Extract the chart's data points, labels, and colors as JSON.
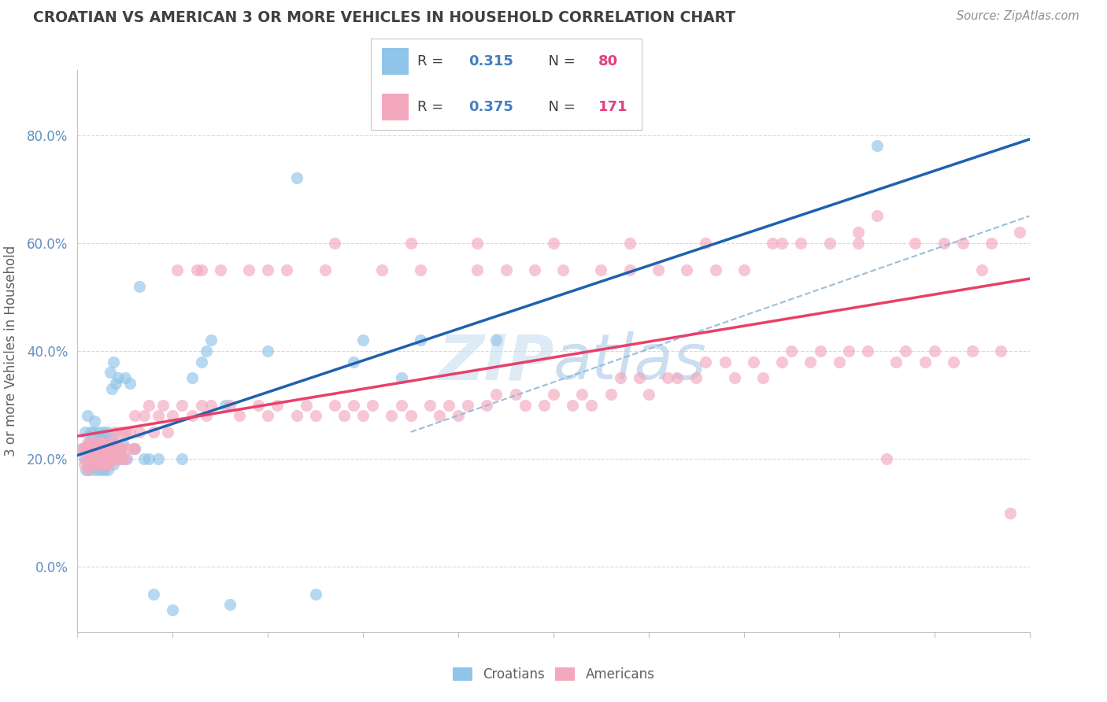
{
  "title": "CROATIAN VS AMERICAN 3 OR MORE VEHICLES IN HOUSEHOLD CORRELATION CHART",
  "source": "Source: ZipAtlas.com",
  "ylabel": "3 or more Vehicles in Household",
  "croatian_R": 0.315,
  "croatian_N": 80,
  "american_R": 0.375,
  "american_N": 171,
  "croatian_color": "#90c4e8",
  "american_color": "#f4a8be",
  "croatian_line_color": "#2060b0",
  "american_line_color": "#e8406a",
  "dash_line_color": "#90b8d8",
  "ytick_color": "#6090c0",
  "xlabel_color": "#6090c0",
  "grid_color": "#c8d8e8",
  "background_color": "#ffffff",
  "title_color": "#404040",
  "source_color": "#909090",
  "legend_R_color": "#4080c0",
  "legend_N_color": "#e04080",
  "legend_text_color": "#404040",
  "watermark_color": "#c8dff0",
  "xmin": 0.0,
  "xmax": 1.0,
  "ymin": -0.12,
  "ymax": 0.92,
  "yticks": [
    0.0,
    0.2,
    0.4,
    0.6,
    0.8
  ],
  "ytick_labels": [
    "0.0%",
    "20.0%",
    "40.0%",
    "60.0%",
    "80.0%"
  ],
  "croatian_points": [
    [
      0.005,
      0.22
    ],
    [
      0.007,
      0.2
    ],
    [
      0.008,
      0.25
    ],
    [
      0.009,
      0.18
    ],
    [
      0.01,
      0.28
    ],
    [
      0.01,
      0.22
    ],
    [
      0.012,
      0.2
    ],
    [
      0.012,
      0.23
    ],
    [
      0.013,
      0.18
    ],
    [
      0.014,
      0.25
    ],
    [
      0.015,
      0.2
    ],
    [
      0.015,
      0.22
    ],
    [
      0.016,
      0.19
    ],
    [
      0.017,
      0.25
    ],
    [
      0.018,
      0.22
    ],
    [
      0.018,
      0.27
    ],
    [
      0.019,
      0.18
    ],
    [
      0.02,
      0.2
    ],
    [
      0.02,
      0.23
    ],
    [
      0.021,
      0.22
    ],
    [
      0.021,
      0.19
    ],
    [
      0.022,
      0.25
    ],
    [
      0.022,
      0.2
    ],
    [
      0.023,
      0.22
    ],
    [
      0.024,
      0.18
    ],
    [
      0.024,
      0.21
    ],
    [
      0.025,
      0.24
    ],
    [
      0.025,
      0.2
    ],
    [
      0.026,
      0.19
    ],
    [
      0.027,
      0.22
    ],
    [
      0.027,
      0.25
    ],
    [
      0.028,
      0.2
    ],
    [
      0.028,
      0.18
    ],
    [
      0.029,
      0.23
    ],
    [
      0.03,
      0.22
    ],
    [
      0.03,
      0.19
    ],
    [
      0.031,
      0.25
    ],
    [
      0.031,
      0.2
    ],
    [
      0.032,
      0.18
    ],
    [
      0.033,
      0.22
    ],
    [
      0.034,
      0.36
    ],
    [
      0.034,
      0.2
    ],
    [
      0.035,
      0.22
    ],
    [
      0.036,
      0.33
    ],
    [
      0.036,
      0.24
    ],
    [
      0.038,
      0.19
    ],
    [
      0.038,
      0.38
    ],
    [
      0.04,
      0.22
    ],
    [
      0.04,
      0.34
    ],
    [
      0.042,
      0.2
    ],
    [
      0.043,
      0.35
    ],
    [
      0.045,
      0.22
    ],
    [
      0.046,
      0.2
    ],
    [
      0.048,
      0.23
    ],
    [
      0.05,
      0.35
    ],
    [
      0.052,
      0.2
    ],
    [
      0.055,
      0.34
    ],
    [
      0.06,
      0.22
    ],
    [
      0.065,
      0.52
    ],
    [
      0.07,
      0.2
    ],
    [
      0.075,
      0.2
    ],
    [
      0.08,
      -0.05
    ],
    [
      0.085,
      0.2
    ],
    [
      0.1,
      -0.08
    ],
    [
      0.11,
      0.2
    ],
    [
      0.12,
      0.35
    ],
    [
      0.13,
      0.38
    ],
    [
      0.135,
      0.4
    ],
    [
      0.14,
      0.42
    ],
    [
      0.155,
      0.3
    ],
    [
      0.16,
      -0.07
    ],
    [
      0.2,
      0.4
    ],
    [
      0.23,
      0.72
    ],
    [
      0.25,
      -0.05
    ],
    [
      0.29,
      0.38
    ],
    [
      0.3,
      0.42
    ],
    [
      0.34,
      0.35
    ],
    [
      0.36,
      0.42
    ],
    [
      0.44,
      0.42
    ],
    [
      0.84,
      0.78
    ]
  ],
  "american_points": [
    [
      0.005,
      0.22
    ],
    [
      0.007,
      0.19
    ],
    [
      0.008,
      0.22
    ],
    [
      0.009,
      0.2
    ],
    [
      0.01,
      0.23
    ],
    [
      0.01,
      0.18
    ],
    [
      0.011,
      0.22
    ],
    [
      0.012,
      0.2
    ],
    [
      0.013,
      0.23
    ],
    [
      0.014,
      0.19
    ],
    [
      0.015,
      0.21
    ],
    [
      0.015,
      0.23
    ],
    [
      0.016,
      0.2
    ],
    [
      0.017,
      0.22
    ],
    [
      0.018,
      0.19
    ],
    [
      0.018,
      0.21
    ],
    [
      0.019,
      0.23
    ],
    [
      0.02,
      0.2
    ],
    [
      0.02,
      0.22
    ],
    [
      0.021,
      0.19
    ],
    [
      0.021,
      0.21
    ],
    [
      0.022,
      0.23
    ],
    [
      0.022,
      0.2
    ],
    [
      0.023,
      0.22
    ],
    [
      0.024,
      0.19
    ],
    [
      0.024,
      0.21
    ],
    [
      0.025,
      0.23
    ],
    [
      0.025,
      0.2
    ],
    [
      0.026,
      0.22
    ],
    [
      0.027,
      0.19
    ],
    [
      0.027,
      0.21
    ],
    [
      0.028,
      0.23
    ],
    [
      0.028,
      0.2
    ],
    [
      0.029,
      0.22
    ],
    [
      0.03,
      0.19
    ],
    [
      0.03,
      0.21
    ],
    [
      0.031,
      0.23
    ],
    [
      0.031,
      0.2
    ],
    [
      0.032,
      0.22
    ],
    [
      0.033,
      0.19
    ],
    [
      0.034,
      0.21
    ],
    [
      0.034,
      0.23
    ],
    [
      0.035,
      0.2
    ],
    [
      0.036,
      0.22
    ],
    [
      0.037,
      0.23
    ],
    [
      0.038,
      0.2
    ],
    [
      0.038,
      0.22
    ],
    [
      0.039,
      0.25
    ],
    [
      0.04,
      0.22
    ],
    [
      0.04,
      0.2
    ],
    [
      0.042,
      0.23
    ],
    [
      0.043,
      0.2
    ],
    [
      0.044,
      0.22
    ],
    [
      0.045,
      0.25
    ],
    [
      0.046,
      0.22
    ],
    [
      0.048,
      0.2
    ],
    [
      0.05,
      0.25
    ],
    [
      0.052,
      0.22
    ],
    [
      0.055,
      0.25
    ],
    [
      0.058,
      0.22
    ],
    [
      0.06,
      0.28
    ],
    [
      0.065,
      0.25
    ],
    [
      0.07,
      0.28
    ],
    [
      0.075,
      0.3
    ],
    [
      0.08,
      0.25
    ],
    [
      0.085,
      0.28
    ],
    [
      0.09,
      0.3
    ],
    [
      0.095,
      0.25
    ],
    [
      0.1,
      0.28
    ],
    [
      0.105,
      0.55
    ],
    [
      0.11,
      0.3
    ],
    [
      0.12,
      0.28
    ],
    [
      0.125,
      0.55
    ],
    [
      0.13,
      0.3
    ],
    [
      0.135,
      0.28
    ],
    [
      0.14,
      0.3
    ],
    [
      0.15,
      0.55
    ],
    [
      0.16,
      0.3
    ],
    [
      0.17,
      0.28
    ],
    [
      0.18,
      0.55
    ],
    [
      0.19,
      0.3
    ],
    [
      0.2,
      0.28
    ],
    [
      0.21,
      0.3
    ],
    [
      0.22,
      0.55
    ],
    [
      0.23,
      0.28
    ],
    [
      0.24,
      0.3
    ],
    [
      0.25,
      0.28
    ],
    [
      0.26,
      0.55
    ],
    [
      0.27,
      0.3
    ],
    [
      0.28,
      0.28
    ],
    [
      0.29,
      0.3
    ],
    [
      0.3,
      0.28
    ],
    [
      0.31,
      0.3
    ],
    [
      0.32,
      0.55
    ],
    [
      0.33,
      0.28
    ],
    [
      0.34,
      0.3
    ],
    [
      0.35,
      0.28
    ],
    [
      0.36,
      0.55
    ],
    [
      0.37,
      0.3
    ],
    [
      0.38,
      0.28
    ],
    [
      0.39,
      0.3
    ],
    [
      0.4,
      0.28
    ],
    [
      0.41,
      0.3
    ],
    [
      0.42,
      0.55
    ],
    [
      0.43,
      0.3
    ],
    [
      0.44,
      0.32
    ],
    [
      0.45,
      0.55
    ],
    [
      0.46,
      0.32
    ],
    [
      0.47,
      0.3
    ],
    [
      0.48,
      0.55
    ],
    [
      0.49,
      0.3
    ],
    [
      0.5,
      0.32
    ],
    [
      0.51,
      0.55
    ],
    [
      0.52,
      0.3
    ],
    [
      0.53,
      0.32
    ],
    [
      0.54,
      0.3
    ],
    [
      0.55,
      0.55
    ],
    [
      0.56,
      0.32
    ],
    [
      0.57,
      0.35
    ],
    [
      0.58,
      0.55
    ],
    [
      0.59,
      0.35
    ],
    [
      0.6,
      0.32
    ],
    [
      0.61,
      0.55
    ],
    [
      0.62,
      0.35
    ],
    [
      0.63,
      0.35
    ],
    [
      0.64,
      0.55
    ],
    [
      0.65,
      0.35
    ],
    [
      0.66,
      0.38
    ],
    [
      0.67,
      0.55
    ],
    [
      0.68,
      0.38
    ],
    [
      0.69,
      0.35
    ],
    [
      0.7,
      0.55
    ],
    [
      0.71,
      0.38
    ],
    [
      0.72,
      0.35
    ],
    [
      0.73,
      0.6
    ],
    [
      0.74,
      0.38
    ],
    [
      0.75,
      0.4
    ],
    [
      0.76,
      0.6
    ],
    [
      0.77,
      0.38
    ],
    [
      0.78,
      0.4
    ],
    [
      0.79,
      0.6
    ],
    [
      0.8,
      0.38
    ],
    [
      0.81,
      0.4
    ],
    [
      0.82,
      0.6
    ],
    [
      0.83,
      0.4
    ],
    [
      0.84,
      0.65
    ],
    [
      0.85,
      0.2
    ],
    [
      0.86,
      0.38
    ],
    [
      0.87,
      0.4
    ],
    [
      0.88,
      0.6
    ],
    [
      0.89,
      0.38
    ],
    [
      0.9,
      0.4
    ],
    [
      0.91,
      0.6
    ],
    [
      0.92,
      0.38
    ],
    [
      0.93,
      0.6
    ],
    [
      0.94,
      0.4
    ],
    [
      0.95,
      0.55
    ],
    [
      0.96,
      0.6
    ],
    [
      0.97,
      0.4
    ],
    [
      0.98,
      0.1
    ],
    [
      0.99,
      0.62
    ],
    [
      0.03,
      0.19
    ],
    [
      0.04,
      0.21
    ],
    [
      0.05,
      0.2
    ],
    [
      0.06,
      0.22
    ],
    [
      0.13,
      0.55
    ],
    [
      0.2,
      0.55
    ],
    [
      0.27,
      0.6
    ],
    [
      0.35,
      0.6
    ],
    [
      0.42,
      0.6
    ],
    [
      0.5,
      0.6
    ],
    [
      0.58,
      0.6
    ],
    [
      0.66,
      0.6
    ],
    [
      0.74,
      0.6
    ],
    [
      0.82,
      0.62
    ]
  ]
}
